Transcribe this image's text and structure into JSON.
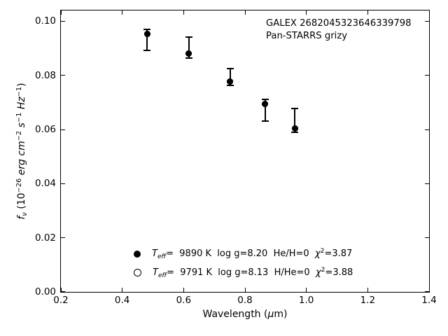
{
  "chart_data": {
    "type": "scatter",
    "description": "White dwarf photometric SED fit: observed Pan-STARRS grizy fluxes with error bars and two model atmosphere fits",
    "annotations": [
      "GALEX 2682045323646339798",
      "Pan-STARRS grizy"
    ],
    "xlabel_text": "Wavelength (μm)",
    "ylabel_text": "fν (10−26 erg cm−2 s−1 Hz−1)",
    "xlabel_segments": [
      {
        "t": "Wavelength ("
      },
      {
        "t": "μ",
        "i": 1
      },
      {
        "t": "m)"
      }
    ],
    "ylabel_segments": [
      {
        "t": "f",
        "i": 1
      },
      {
        "t": "ν",
        "i": 1,
        "sub": 1
      },
      {
        "t": " (10"
      },
      {
        "t": "−26",
        "sup": 1
      },
      {
        "t": " "
      },
      {
        "t": "erg",
        "i": 1
      },
      {
        "t": " "
      },
      {
        "t": "cm",
        "i": 1
      },
      {
        "t": "−2",
        "sup": 1
      },
      {
        "t": " "
      },
      {
        "t": "s",
        "i": 1
      },
      {
        "t": "−1",
        "sup": 1
      },
      {
        "t": " "
      },
      {
        "t": "Hz",
        "i": 1
      },
      {
        "t": "−1",
        "sup": 1
      },
      {
        "t": ")"
      }
    ],
    "xlim": [
      0.2,
      1.4
    ],
    "ylim": [
      0.0,
      0.104
    ],
    "xtick_labels": [
      "0.2",
      "0.4",
      "0.6",
      "0.8",
      "1.0",
      "1.2",
      "1.4"
    ],
    "ytick_labels": [
      "0.00",
      "0.02",
      "0.04",
      "0.06",
      "0.08",
      "0.10"
    ],
    "grid": false,
    "x": [
      0.481,
      0.617,
      0.752,
      0.866,
      0.962
    ],
    "bands": [
      "g",
      "r",
      "i",
      "z",
      "y"
    ],
    "series": [
      {
        "name": "observed-photometry",
        "style": "errorbar",
        "y": [
          0.0931,
          0.0902,
          0.0794,
          0.0671,
          0.0634
        ],
        "yerr": [
          0.0038,
          0.0039,
          0.0032,
          0.0041,
          0.0043
        ]
      },
      {
        "name": "model-He-H-0",
        "style": "filled-circle",
        "y": [
          0.0953,
          0.088,
          0.0777,
          0.0695,
          0.0604
        ]
      },
      {
        "name": "model-H-He-0",
        "style": "open-circle",
        "y": [
          0.0953,
          0.088,
          0.0777,
          0.0695,
          0.0604
        ]
      }
    ],
    "legend": {
      "position": "lower-center-inside",
      "frame": false,
      "entries": [
        {
          "marker": "filled-circle",
          "text": "T_eff=  9890 K  log g=8.20  He/H=0  χ2=3.87",
          "segments": [
            {
              "t": "T",
              "i": 1
            },
            {
              "t": "eff",
              "i": 1,
              "sub": 1
            },
            {
              "t": "=  9890 K  log g=8.20  He/H=0  "
            },
            {
              "t": "χ",
              "i": 1
            },
            {
              "t": "2",
              "sup": 1
            },
            {
              "t": "=3.87"
            }
          ]
        },
        {
          "marker": "open-circle",
          "text": "T_eff=  9791 K  log g=8.13  H/He=0  χ2=3.88",
          "segments": [
            {
              "t": "T",
              "i": 1
            },
            {
              "t": "eff",
              "i": 1,
              "sub": 1
            },
            {
              "t": "=  9791 K  log g=8.13  H/He=0  "
            },
            {
              "t": "χ",
              "i": 1
            },
            {
              "t": "2",
              "sup": 1
            },
            {
              "t": "=3.88"
            }
          ]
        }
      ]
    },
    "colors": {
      "foreground": "#000000",
      "background": "#ffffff"
    }
  }
}
